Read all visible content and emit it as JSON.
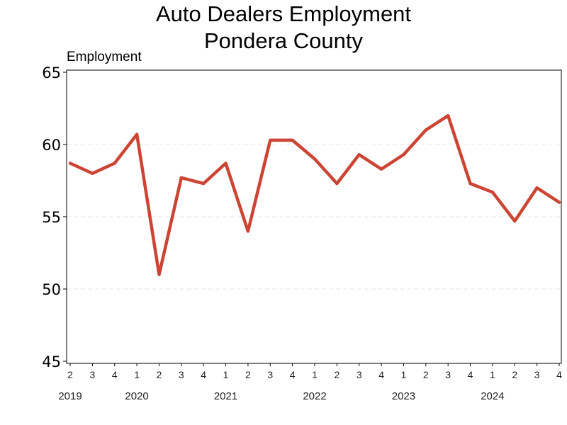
{
  "chart_data": {
    "type": "line",
    "title": [
      "Auto Dealers Employment",
      "Pondera County"
    ],
    "ylabel": "Employment",
    "xlabel": "",
    "ylim": [
      45,
      65
    ],
    "yticks": [
      45,
      50,
      55,
      60,
      65
    ],
    "grid": true,
    "line_color": "#cc4433",
    "categories": [
      "2",
      "3",
      "4",
      "1",
      "2",
      "3",
      "4",
      "1",
      "2",
      "3",
      "4",
      "1",
      "2",
      "3",
      "4",
      "1",
      "2",
      "3",
      "4",
      "1",
      "2",
      "3",
      "4"
    ],
    "year_labels": [
      {
        "label": "2019",
        "index": 0
      },
      {
        "label": "2020",
        "index": 3
      },
      {
        "label": "2021",
        "index": 7
      },
      {
        "label": "2022",
        "index": 11
      },
      {
        "label": "2023",
        "index": 15
      },
      {
        "label": "2024",
        "index": 19
      }
    ],
    "series": [
      {
        "values": [
          58.7,
          58.0,
          58.7,
          60.7,
          51.0,
          57.7,
          57.3,
          58.7,
          54.0,
          60.3,
          60.3,
          59.0,
          57.3,
          59.3,
          58.3,
          59.3,
          61.0,
          62.0,
          57.3,
          56.7,
          54.7,
          57.0,
          56.0
        ]
      }
    ]
  }
}
